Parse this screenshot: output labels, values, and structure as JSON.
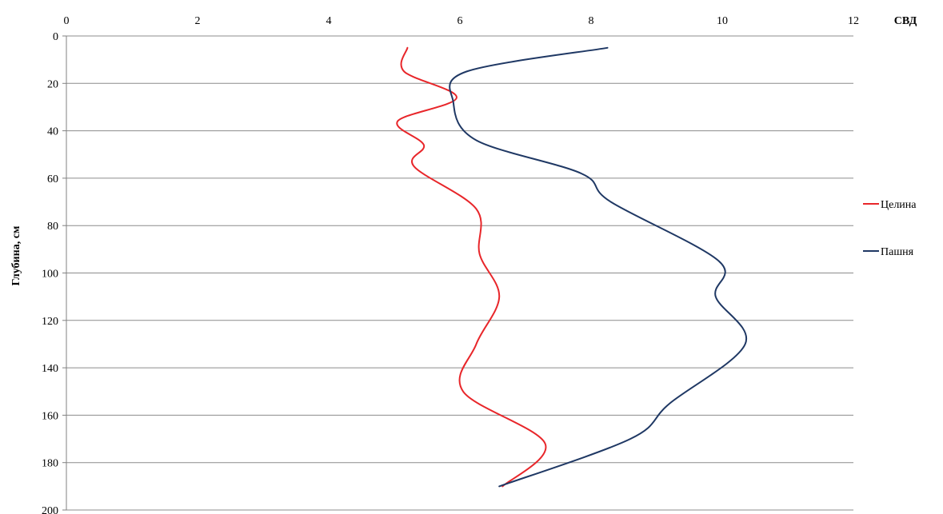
{
  "chart_data": {
    "type": "line",
    "title": "",
    "xlabel": "СВД",
    "ylabel": "Глубина, см",
    "xlim": [
      0,
      12
    ],
    "ylim": [
      0,
      200
    ],
    "y_inverted": true,
    "x_axis_position": "top",
    "x_ticks": [
      "0",
      "2",
      "4",
      "6",
      "8",
      "10",
      "12"
    ],
    "y_ticks": [
      "0",
      "20",
      "40",
      "60",
      "80",
      "100",
      "120",
      "140",
      "160",
      "180",
      "200"
    ],
    "grid": "horizontal",
    "legend_position": "right",
    "series": [
      {
        "name": "Целина",
        "color": "#e8262a",
        "points": [
          {
            "x": 5.2,
            "y": 5
          },
          {
            "x": 5.15,
            "y": 15
          },
          {
            "x": 5.95,
            "y": 26
          },
          {
            "x": 5.05,
            "y": 36
          },
          {
            "x": 5.45,
            "y": 46
          },
          {
            "x": 5.3,
            "y": 55
          },
          {
            "x": 6.25,
            "y": 73
          },
          {
            "x": 6.3,
            "y": 92
          },
          {
            "x": 6.6,
            "y": 110
          },
          {
            "x": 6.25,
            "y": 130
          },
          {
            "x": 6.05,
            "y": 150
          },
          {
            "x": 7.3,
            "y": 172
          },
          {
            "x": 6.65,
            "y": 190
          }
        ]
      },
      {
        "name": "Пашня",
        "color": "#1f3864",
        "points": [
          {
            "x": 8.25,
            "y": 5
          },
          {
            "x": 6.1,
            "y": 15
          },
          {
            "x": 5.9,
            "y": 28
          },
          {
            "x": 6.25,
            "y": 44
          },
          {
            "x": 7.85,
            "y": 58
          },
          {
            "x": 8.3,
            "y": 70
          },
          {
            "x": 9.95,
            "y": 95
          },
          {
            "x": 9.9,
            "y": 110
          },
          {
            "x": 10.35,
            "y": 130
          },
          {
            "x": 9.2,
            "y": 155
          },
          {
            "x": 8.6,
            "y": 170
          },
          {
            "x": 6.6,
            "y": 190
          }
        ]
      }
    ]
  }
}
